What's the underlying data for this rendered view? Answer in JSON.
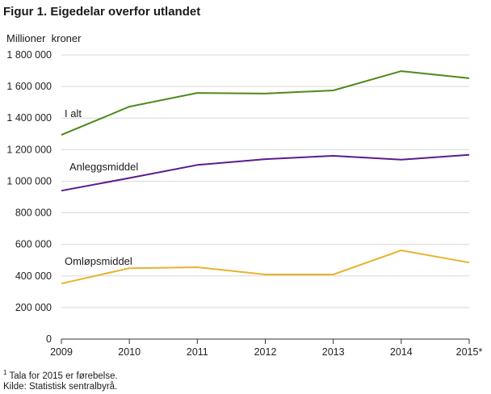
{
  "title": "Figur 1. Eigedelar overfor utlandet",
  "unit_label": "Millioner  kroner",
  "footnotes": {
    "marker": "1",
    "note": " Tala for 2015 er førebelse.",
    "source": "Kilde: Statistisk sentralbyrå."
  },
  "colors": {
    "I alt": "#4d8a1e",
    "Anleggsmiddel": "#5c1a8c",
    "Omløpsmiddel": "#e8b22e",
    "grid": "#d9d9d9",
    "axis": "#333333"
  },
  "chart_data": {
    "type": "line",
    "title": "Figur 1. Eigedelar overfor utlandet",
    "ylabel": "Millioner  kroner",
    "xlabel": "",
    "x": [
      "2009",
      "2010",
      "2011",
      "2012",
      "2013",
      "2014",
      "2015*"
    ],
    "yticks": [
      "0",
      "200 000",
      "400 000",
      "600 000",
      "800 000",
      "1 000 000",
      "1 200 000",
      "1 400 000",
      "1 600 000",
      "1 800 000"
    ],
    "ylim": [
      0,
      1800000
    ],
    "grid": "horizontal",
    "series": [
      {
        "name": "I alt",
        "values": [
          1293000,
          1472000,
          1559000,
          1555000,
          1575000,
          1697000,
          1652000
        ]
      },
      {
        "name": "Anleggsmiddel",
        "values": [
          940000,
          1020000,
          1103000,
          1140000,
          1161000,
          1136000,
          1167000
        ]
      },
      {
        "name": "Omløpsmiddel",
        "values": [
          352000,
          449000,
          455000,
          409000,
          409000,
          562000,
          485000
        ]
      }
    ]
  }
}
